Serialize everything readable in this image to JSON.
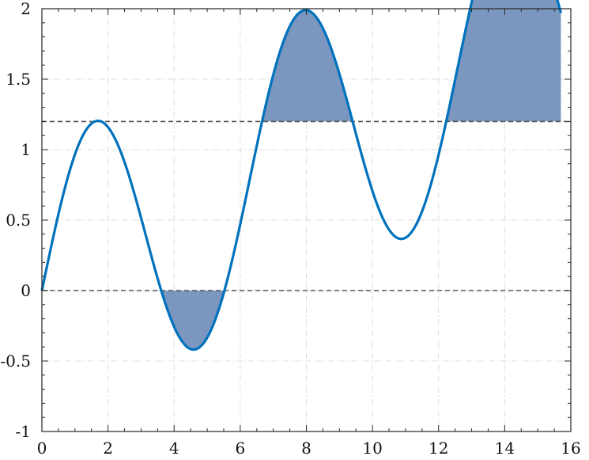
{
  "chart_data": {
    "type": "line",
    "title": "",
    "xlabel": "",
    "ylabel": "",
    "xlim": [
      0,
      16
    ],
    "ylim": [
      -1,
      2
    ],
    "grid": true,
    "x_ticks": [
      0,
      2,
      4,
      6,
      8,
      10,
      12,
      14,
      16
    ],
    "x_tick_labels": [
      "0",
      "2",
      "4",
      "6",
      "8",
      "10",
      "12",
      "14",
      "16"
    ],
    "y_ticks": [
      -1,
      -0.5,
      0,
      0.5,
      1,
      1.5,
      2
    ],
    "y_tick_labels": [
      "-1",
      "-0.5",
      "0",
      "0.5",
      "1",
      "1.5",
      "2"
    ],
    "x_minor_step": 0.5,
    "y_minor_step": 0.1,
    "x_range": [
      0,
      15.7
    ],
    "series": [
      {
        "values": "y = sin(x) + x/8",
        "color": "#0072BD"
      }
    ],
    "thresholds": [
      {
        "y": 0,
        "color": "#555555",
        "style": "dashed",
        "fill_below": true
      },
      {
        "y": 1.2,
        "color": "#555555",
        "style": "dashed",
        "fill_above": true
      }
    ],
    "fill_color": "#7b96bf"
  }
}
